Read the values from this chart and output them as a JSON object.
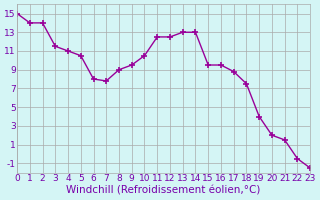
{
  "x": [
    0,
    1,
    2,
    3,
    4,
    5,
    6,
    7,
    8,
    9,
    10,
    11,
    12,
    13,
    14,
    15,
    16,
    17,
    18,
    19,
    20,
    21,
    22,
    23
  ],
  "y": [
    15,
    14,
    14,
    11.5,
    11,
    10.5,
    8,
    7.8,
    9,
    9.5,
    10.5,
    12.5,
    12.5,
    13,
    13,
    9.5,
    9.5,
    8.8,
    7.5,
    4,
    2,
    1.5,
    -0.5,
    -1.5
  ],
  "line_color": "#990099",
  "marker": "+",
  "marker_size": 5,
  "bg_color": "#d4f5f5",
  "grid_color": "#aaaaaa",
  "xlabel": "Windchill (Refroidissement éolien,°C)",
  "xlim": [
    0,
    23
  ],
  "ylim": [
    -2,
    16
  ],
  "yticks": [
    -1,
    1,
    3,
    5,
    7,
    9,
    11,
    13,
    15
  ],
  "xticks": [
    0,
    1,
    2,
    3,
    4,
    5,
    6,
    7,
    8,
    9,
    10,
    11,
    12,
    13,
    14,
    15,
    16,
    17,
    18,
    19,
    20,
    21,
    22,
    23
  ],
  "xtick_labels": [
    "0",
    "1",
    "2",
    "3",
    "4",
    "5",
    "6",
    "7",
    "8",
    "9",
    "10",
    "11",
    "12",
    "13",
    "14",
    "15",
    "16",
    "17",
    "18",
    "19",
    "20",
    "21",
    "22",
    "23"
  ],
  "font_color": "#7700aa",
  "tick_fontsize": 6.5,
  "xlabel_fontsize": 7.5
}
